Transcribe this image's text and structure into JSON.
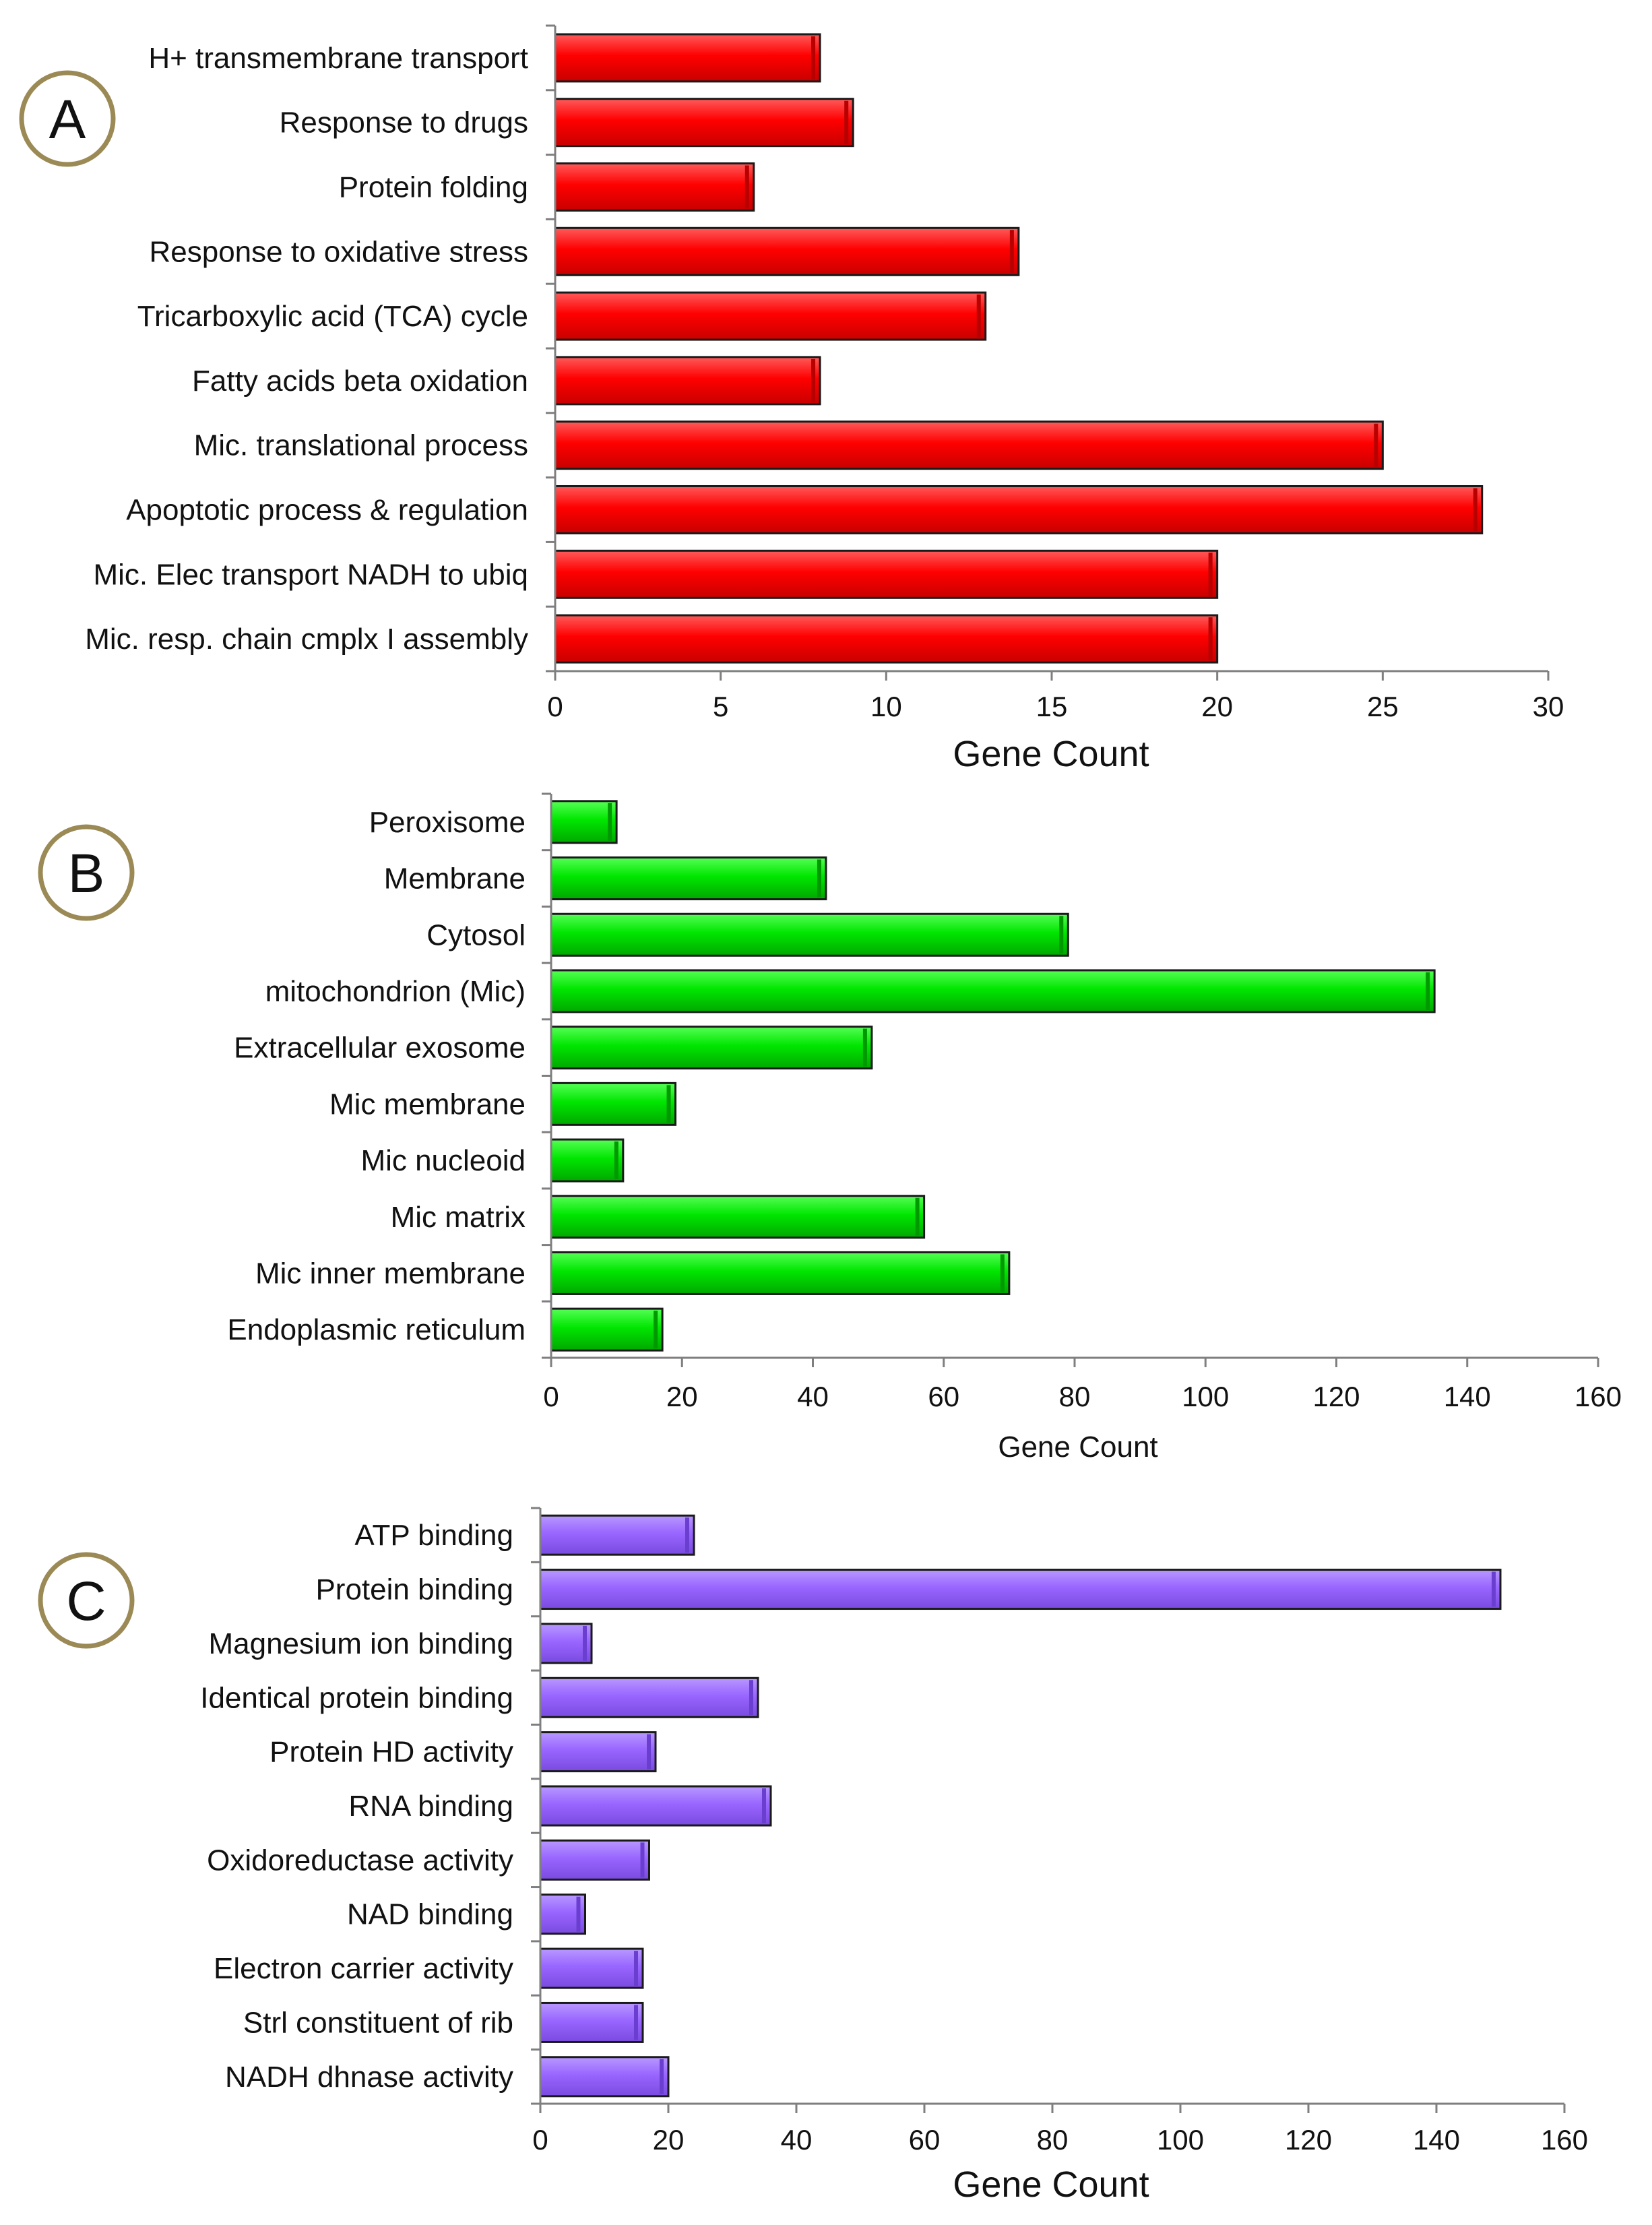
{
  "colors": {
    "panel_a_bar": "#ff0000",
    "panel_a_bar_dark": "#b80000",
    "panel_b_bar": "#00e600",
    "panel_b_bar_dark": "#009900",
    "panel_c_bar": "#9966ff",
    "panel_c_bar_dark": "#6a3fd0",
    "badge_ring": "#9b8a55",
    "axis": "#7f7f7f"
  },
  "chart_data": [
    {
      "type": "bar",
      "orientation": "horizontal",
      "panel_label": "A",
      "xlabel": "Gene Count",
      "xlim": [
        0,
        30
      ],
      "xticks": [
        0,
        5,
        10,
        15,
        20,
        25,
        30
      ],
      "categories": [
        "H+ transmembrane transport",
        "Response to drugs",
        "Protein folding",
        "Response to oxidative stress",
        "Tricarboxylic acid  (TCA) cycle",
        "Fatty acids beta oxidation",
        "Mic. translational process",
        "Apoptotic process & regulation",
        "Mic. Elec transport  NADH to ubiq",
        "Mic. resp. chain cmplx I assembly"
      ],
      "values": [
        8,
        9,
        6,
        14,
        13,
        8,
        25,
        28,
        20,
        20
      ]
    },
    {
      "type": "bar",
      "orientation": "horizontal",
      "panel_label": "B",
      "xlabel": "Gene Count",
      "xlim": [
        0,
        160
      ],
      "xticks": [
        0,
        20,
        40,
        60,
        80,
        100,
        120,
        140,
        160
      ],
      "categories": [
        "Peroxisome",
        "Membrane",
        "Cytosol",
        "mitochondrion (Mic)",
        "Extracellular exosome",
        "Mic membrane",
        "Mic nucleoid",
        "Mic matrix",
        "Mic inner membrane",
        "Endoplasmic reticulum"
      ],
      "values": [
        10,
        42,
        79,
        135,
        49,
        19,
        11,
        57,
        70,
        17
      ]
    },
    {
      "type": "bar",
      "orientation": "horizontal",
      "panel_label": "C",
      "xlabel": "Gene Count",
      "xlim": [
        0,
        160
      ],
      "xticks": [
        0,
        20,
        40,
        60,
        80,
        100,
        120,
        140,
        160
      ],
      "categories": [
        "ATP binding",
        "Protein binding",
        "Magnesium ion binding",
        "Identical protein binding",
        "Protein HD activity",
        "RNA binding",
        "Oxidoreductase activity",
        "NAD binding",
        "Electron carrier activity",
        "Strl constituent of rib",
        "NADH dhnase  activity"
      ],
      "values": [
        24,
        150,
        8,
        34,
        18,
        36,
        17,
        7,
        16,
        16,
        20
      ]
    }
  ]
}
